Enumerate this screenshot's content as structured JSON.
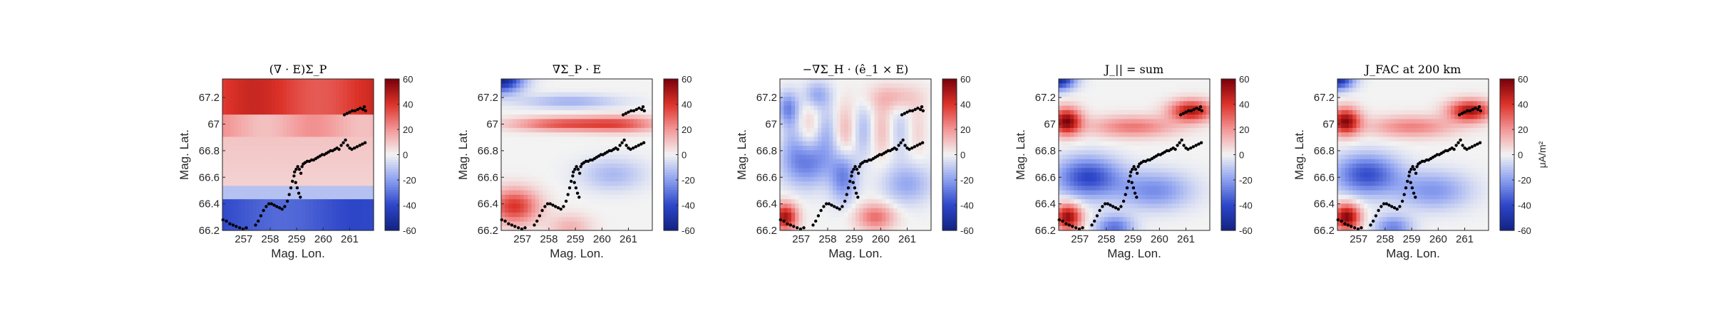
{
  "chart_data": [
    {
      "type": "heatmap",
      "title": "(∇ · E)Σ_P",
      "xlabel": "Mag. Lon.",
      "ylabel": "Mag. Lat.",
      "xlim": [
        256.2,
        261.9
      ],
      "ylim": [
        66.2,
        67.34
      ],
      "x_ticks": [
        "257",
        "258",
        "259",
        "260",
        "261"
      ],
      "y_ticks": [
        "66.2",
        "66.4",
        "66.6",
        "66.8",
        "67",
        "67.2"
      ],
      "colorbar": {
        "range": [
          -60,
          60
        ],
        "ticks": [
          "60",
          "40",
          "20",
          "0",
          "-20",
          "-40",
          "-60"
        ],
        "label": "",
        "colormap": "blue-white-red"
      },
      "field": "divE_sigmaP"
    },
    {
      "type": "heatmap",
      "title": "∇Σ_P · E",
      "xlabel": "Mag. Lon.",
      "ylabel": "Mag. Lat.",
      "xlim": [
        256.2,
        261.9
      ],
      "ylim": [
        66.2,
        67.34
      ],
      "x_ticks": [
        "257",
        "258",
        "259",
        "260",
        "261"
      ],
      "y_ticks": [
        "66.2",
        "66.4",
        "66.6",
        "66.8",
        "67",
        "67.2"
      ],
      "colorbar": {
        "range": [
          -60,
          60
        ],
        "ticks": [
          "60",
          "40",
          "20",
          "0",
          "-20",
          "-40",
          "-60"
        ],
        "label": "",
        "colormap": "blue-white-red"
      },
      "field": "gradSigmaP_dot_E"
    },
    {
      "type": "heatmap",
      "title": "−∇Σ_H · (ê_1 × E)",
      "xlabel": "Mag. Lon.",
      "ylabel": "Mag. Lat.",
      "xlim": [
        256.2,
        261.9
      ],
      "ylim": [
        66.2,
        67.34
      ],
      "x_ticks": [
        "257",
        "258",
        "259",
        "260",
        "261"
      ],
      "y_ticks": [
        "66.2",
        "66.4",
        "66.6",
        "66.8",
        "67",
        "67.2"
      ],
      "colorbar": {
        "range": [
          -60,
          60
        ],
        "ticks": [
          "60",
          "40",
          "20",
          "0",
          "-20",
          "-40",
          "-60"
        ],
        "label": "",
        "colormap": "blue-white-red"
      },
      "field": "gradSigmaH_term"
    },
    {
      "type": "heatmap",
      "title": "J_|| = sum",
      "xlabel": "Mag. Lon.",
      "ylabel": "Mag. Lat.",
      "xlim": [
        256.2,
        261.9
      ],
      "ylim": [
        66.2,
        67.34
      ],
      "x_ticks": [
        "257",
        "258",
        "259",
        "260",
        "261"
      ],
      "y_ticks": [
        "66.2",
        "66.4",
        "66.6",
        "66.8",
        "67",
        "67.2"
      ],
      "colorbar": {
        "range": [
          -60,
          60
        ],
        "ticks": [
          "60",
          "40",
          "20",
          "0",
          "-20",
          "-40",
          "-60"
        ],
        "label": "",
        "colormap": "blue-white-red"
      },
      "field": "sum"
    },
    {
      "type": "heatmap",
      "title": "J_FAC at 200 km",
      "xlabel": "Mag. Lon.",
      "ylabel": "Mag. Lat.",
      "xlim": [
        256.2,
        261.9
      ],
      "ylim": [
        66.2,
        67.34
      ],
      "x_ticks": [
        "257",
        "258",
        "259",
        "260",
        "261"
      ],
      "y_ticks": [
        "66.2",
        "66.4",
        "66.6",
        "66.8",
        "67",
        "67.2"
      ],
      "colorbar": {
        "range": [
          -60,
          60
        ],
        "ticks": [
          "60",
          "40",
          "20",
          "0",
          "-20",
          "-40",
          "-60"
        ],
        "label": "μA/m²",
        "colormap": "blue-white-red"
      },
      "field": "jfac"
    }
  ],
  "track_points": [
    [
      256.22,
      66.28
    ],
    [
      256.35,
      66.27
    ],
    [
      256.48,
      66.25
    ],
    [
      256.6,
      66.24
    ],
    [
      256.72,
      66.23
    ],
    [
      256.85,
      66.22
    ],
    [
      256.98,
      66.21
    ],
    [
      257.1,
      66.22
    ],
    [
      257.45,
      66.24
    ],
    [
      257.55,
      66.27
    ],
    [
      257.65,
      66.31
    ],
    [
      257.75,
      66.35
    ],
    [
      257.85,
      66.38
    ],
    [
      257.95,
      66.4
    ],
    [
      258.05,
      66.4
    ],
    [
      258.15,
      66.39
    ],
    [
      258.25,
      66.38
    ],
    [
      258.35,
      66.37
    ],
    [
      258.45,
      66.36
    ],
    [
      258.55,
      66.38
    ],
    [
      258.65,
      66.42
    ],
    [
      258.72,
      66.47
    ],
    [
      258.78,
      66.52
    ],
    [
      258.84,
      66.57
    ],
    [
      258.9,
      66.61
    ],
    [
      258.96,
      66.56
    ],
    [
      259.02,
      66.52
    ],
    [
      259.08,
      66.48
    ],
    [
      259.14,
      66.45
    ],
    [
      258.92,
      66.64
    ],
    [
      258.98,
      66.66
    ],
    [
      259.04,
      66.68
    ],
    [
      259.1,
      66.66
    ],
    [
      259.16,
      66.63
    ],
    [
      259.2,
      66.68
    ],
    [
      259.25,
      66.7
    ],
    [
      259.32,
      66.71
    ],
    [
      259.4,
      66.72
    ],
    [
      259.48,
      66.72
    ],
    [
      259.56,
      66.73
    ],
    [
      259.64,
      66.73
    ],
    [
      259.72,
      66.74
    ],
    [
      259.8,
      66.75
    ],
    [
      259.88,
      66.76
    ],
    [
      259.96,
      66.77
    ],
    [
      260.04,
      66.77
    ],
    [
      260.12,
      66.78
    ],
    [
      260.2,
      66.79
    ],
    [
      260.28,
      66.8
    ],
    [
      260.36,
      66.8
    ],
    [
      260.44,
      66.81
    ],
    [
      260.52,
      66.82
    ],
    [
      260.6,
      66.81
    ],
    [
      260.68,
      66.84
    ],
    [
      260.76,
      66.86
    ],
    [
      260.84,
      66.88
    ],
    [
      260.92,
      66.84
    ],
    [
      261.0,
      66.82
    ],
    [
      261.08,
      66.81
    ],
    [
      261.18,
      66.82
    ],
    [
      261.28,
      66.83
    ],
    [
      261.38,
      66.84
    ],
    [
      261.48,
      66.85
    ],
    [
      261.58,
      66.86
    ],
    [
      260.8,
      67.07
    ],
    [
      260.9,
      67.08
    ],
    [
      261.0,
      67.09
    ],
    [
      261.1,
      67.1
    ],
    [
      261.2,
      67.1
    ],
    [
      261.3,
      67.11
    ],
    [
      261.4,
      67.12
    ],
    [
      261.5,
      67.11
    ],
    [
      261.6,
      67.1
    ],
    [
      261.55,
      67.13
    ]
  ]
}
